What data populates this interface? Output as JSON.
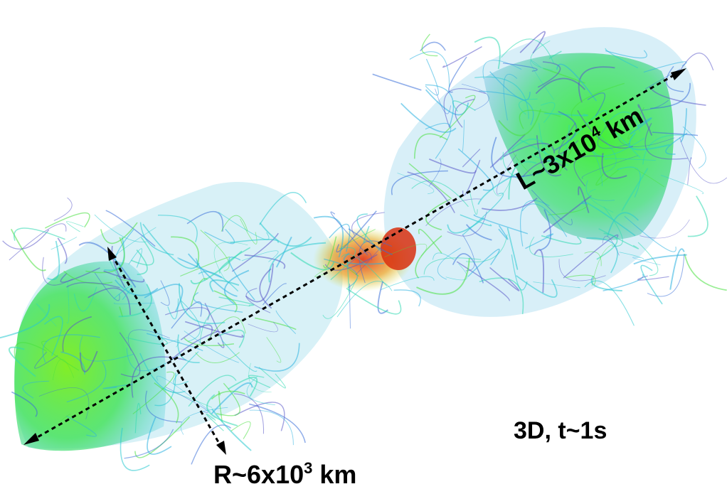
{
  "annotations": {
    "length": {
      "base": "L~3x10",
      "exponent": "4",
      "unit": "km"
    },
    "radius": {
      "base": "R~6x10",
      "exponent": "3",
      "unit": "km"
    },
    "time": "3D, t~1s"
  }
}
